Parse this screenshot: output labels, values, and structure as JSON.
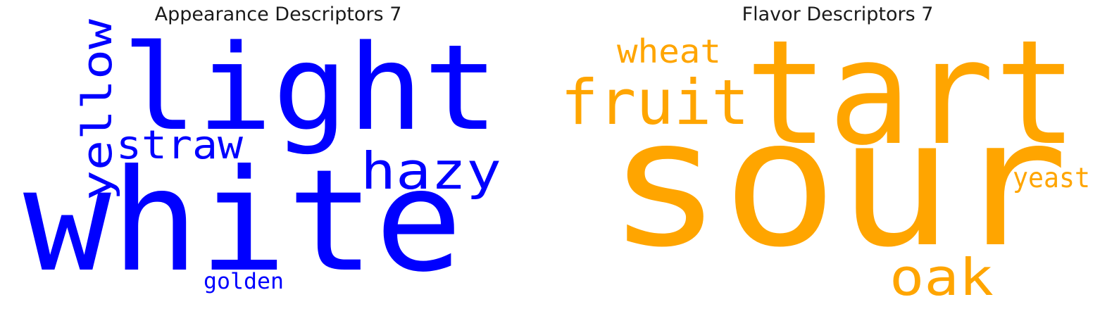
{
  "panels": [
    {
      "title": "Appearance Descriptors 7",
      "color": "#0000ff",
      "words": [
        {
          "text": "white"
        },
        {
          "text": "light"
        },
        {
          "text": "yellow"
        },
        {
          "text": "straw"
        },
        {
          "text": "hazy"
        },
        {
          "text": "golden"
        }
      ]
    },
    {
      "title": "Flavor Descriptors 7",
      "color": "#ffa500",
      "words": [
        {
          "text": "sour"
        },
        {
          "text": "tart"
        },
        {
          "text": "fruit"
        },
        {
          "text": "wheat"
        },
        {
          "text": "oak"
        },
        {
          "text": "yeast"
        }
      ]
    }
  ]
}
